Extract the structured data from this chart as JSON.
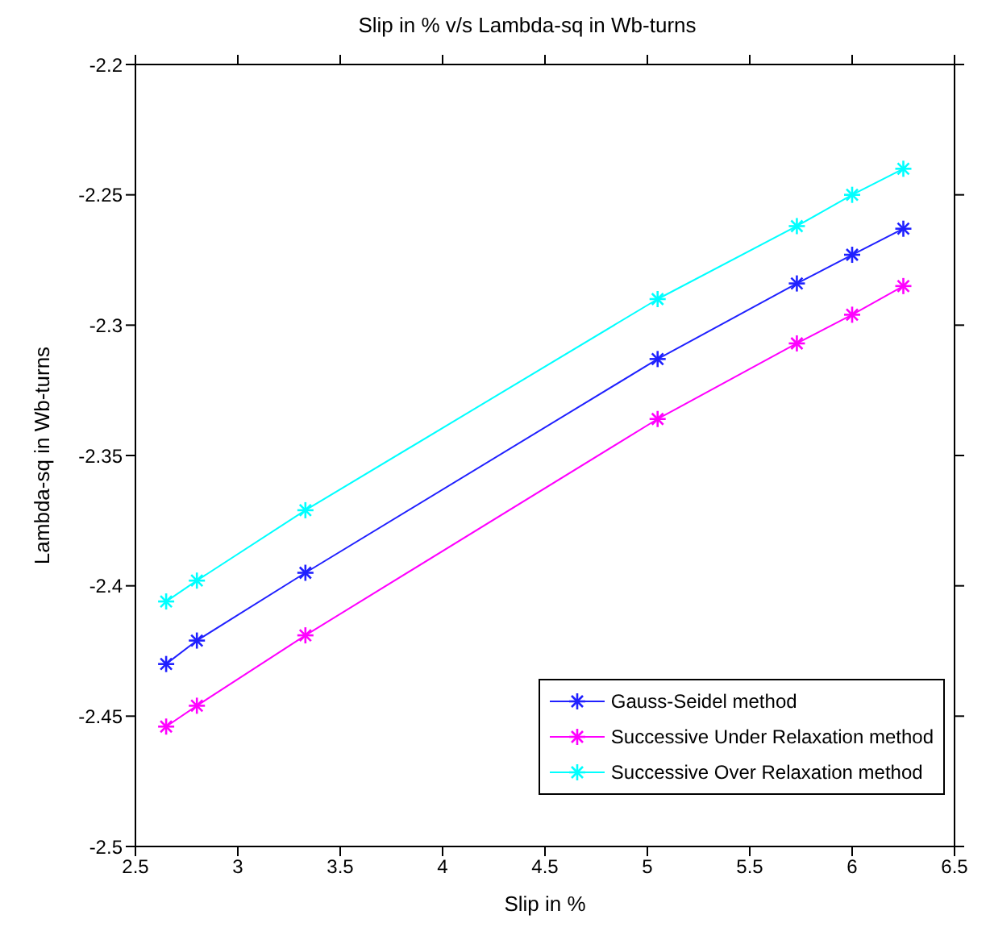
{
  "chart_data": {
    "type": "line",
    "title": "Slip in % v/s Lambda-sq in Wb-turns",
    "xlabel": "Slip in %",
    "ylabel": "Lambda-sq in Wb-turns",
    "x": [
      2.65,
      2.8,
      3.33,
      5.05,
      5.73,
      6.0,
      6.25
    ],
    "series": [
      {
        "name": "Gauss-Seidel method",
        "color": "#2020ff",
        "values": [
          -2.43,
          -2.421,
          -2.395,
          -2.313,
          -2.284,
          -2.273,
          -2.263
        ]
      },
      {
        "name": "Successive Under Relaxation method",
        "color": "#ff00ff",
        "values": [
          -2.454,
          -2.446,
          -2.419,
          -2.336,
          -2.307,
          -2.296,
          -2.285
        ]
      },
      {
        "name": "Successive Over Relaxation method",
        "color": "#00ffff",
        "values": [
          -2.406,
          -2.398,
          -2.371,
          -2.29,
          -2.262,
          -2.25,
          -2.24
        ]
      }
    ],
    "xlim": [
      2.5,
      6.5
    ],
    "xticks": [
      2.5,
      3,
      3.5,
      4,
      4.5,
      5,
      5.5,
      6,
      6.5
    ],
    "ylim": [
      -2.5,
      -2.2
    ],
    "yticks": [
      -2.5,
      -2.45,
      -2.4,
      -2.35,
      -2.3,
      -2.25,
      -2.2
    ],
    "grid": false,
    "legend": "bottom right",
    "marker": "cross",
    "line_style": "solid"
  }
}
